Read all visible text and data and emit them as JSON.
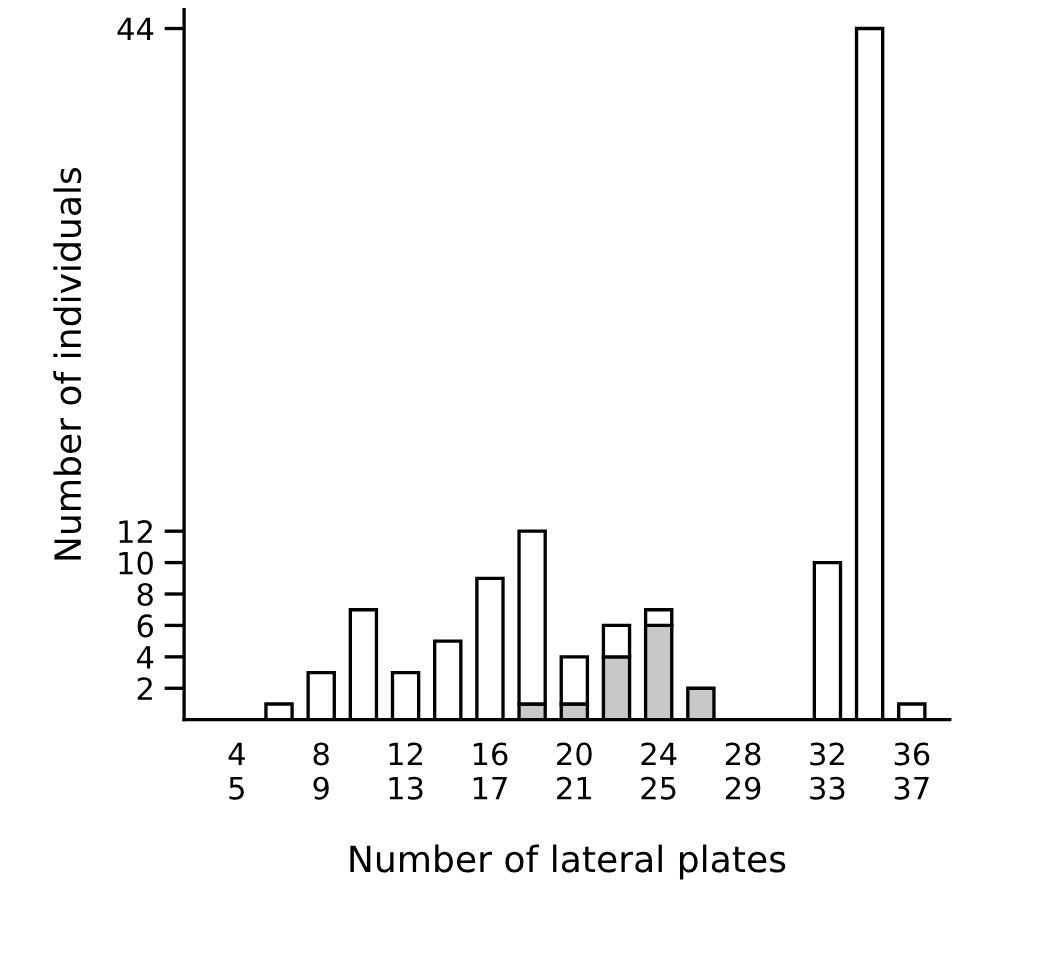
{
  "chart_data": {
    "type": "bar",
    "stacked": true,
    "ylabel": "Number of individuals",
    "xlabel": "Number of lateral plates",
    "ylim": [
      0,
      45.2
    ],
    "yticks": [
      2,
      4,
      6,
      8,
      10,
      12,
      44
    ],
    "categories": [
      "4\n5",
      null,
      "8\n9",
      null,
      "12\n13",
      null,
      "16\n17",
      null,
      "20\n21",
      null,
      "24\n25",
      null,
      "28\n29",
      null,
      "32\n33",
      null,
      "36\n37"
    ],
    "series": [
      {
        "color": "#c8c8c8",
        "values": [
          0,
          0,
          0,
          0,
          0,
          0,
          0,
          1,
          1,
          4,
          6,
          2,
          0,
          0,
          0,
          0,
          0
        ]
      },
      {
        "color": "#ffffff",
        "values": [
          0,
          1,
          3,
          7,
          3,
          5,
          9,
          11,
          3,
          2,
          1,
          0,
          0,
          0,
          10,
          44,
          1
        ]
      }
    ]
  }
}
